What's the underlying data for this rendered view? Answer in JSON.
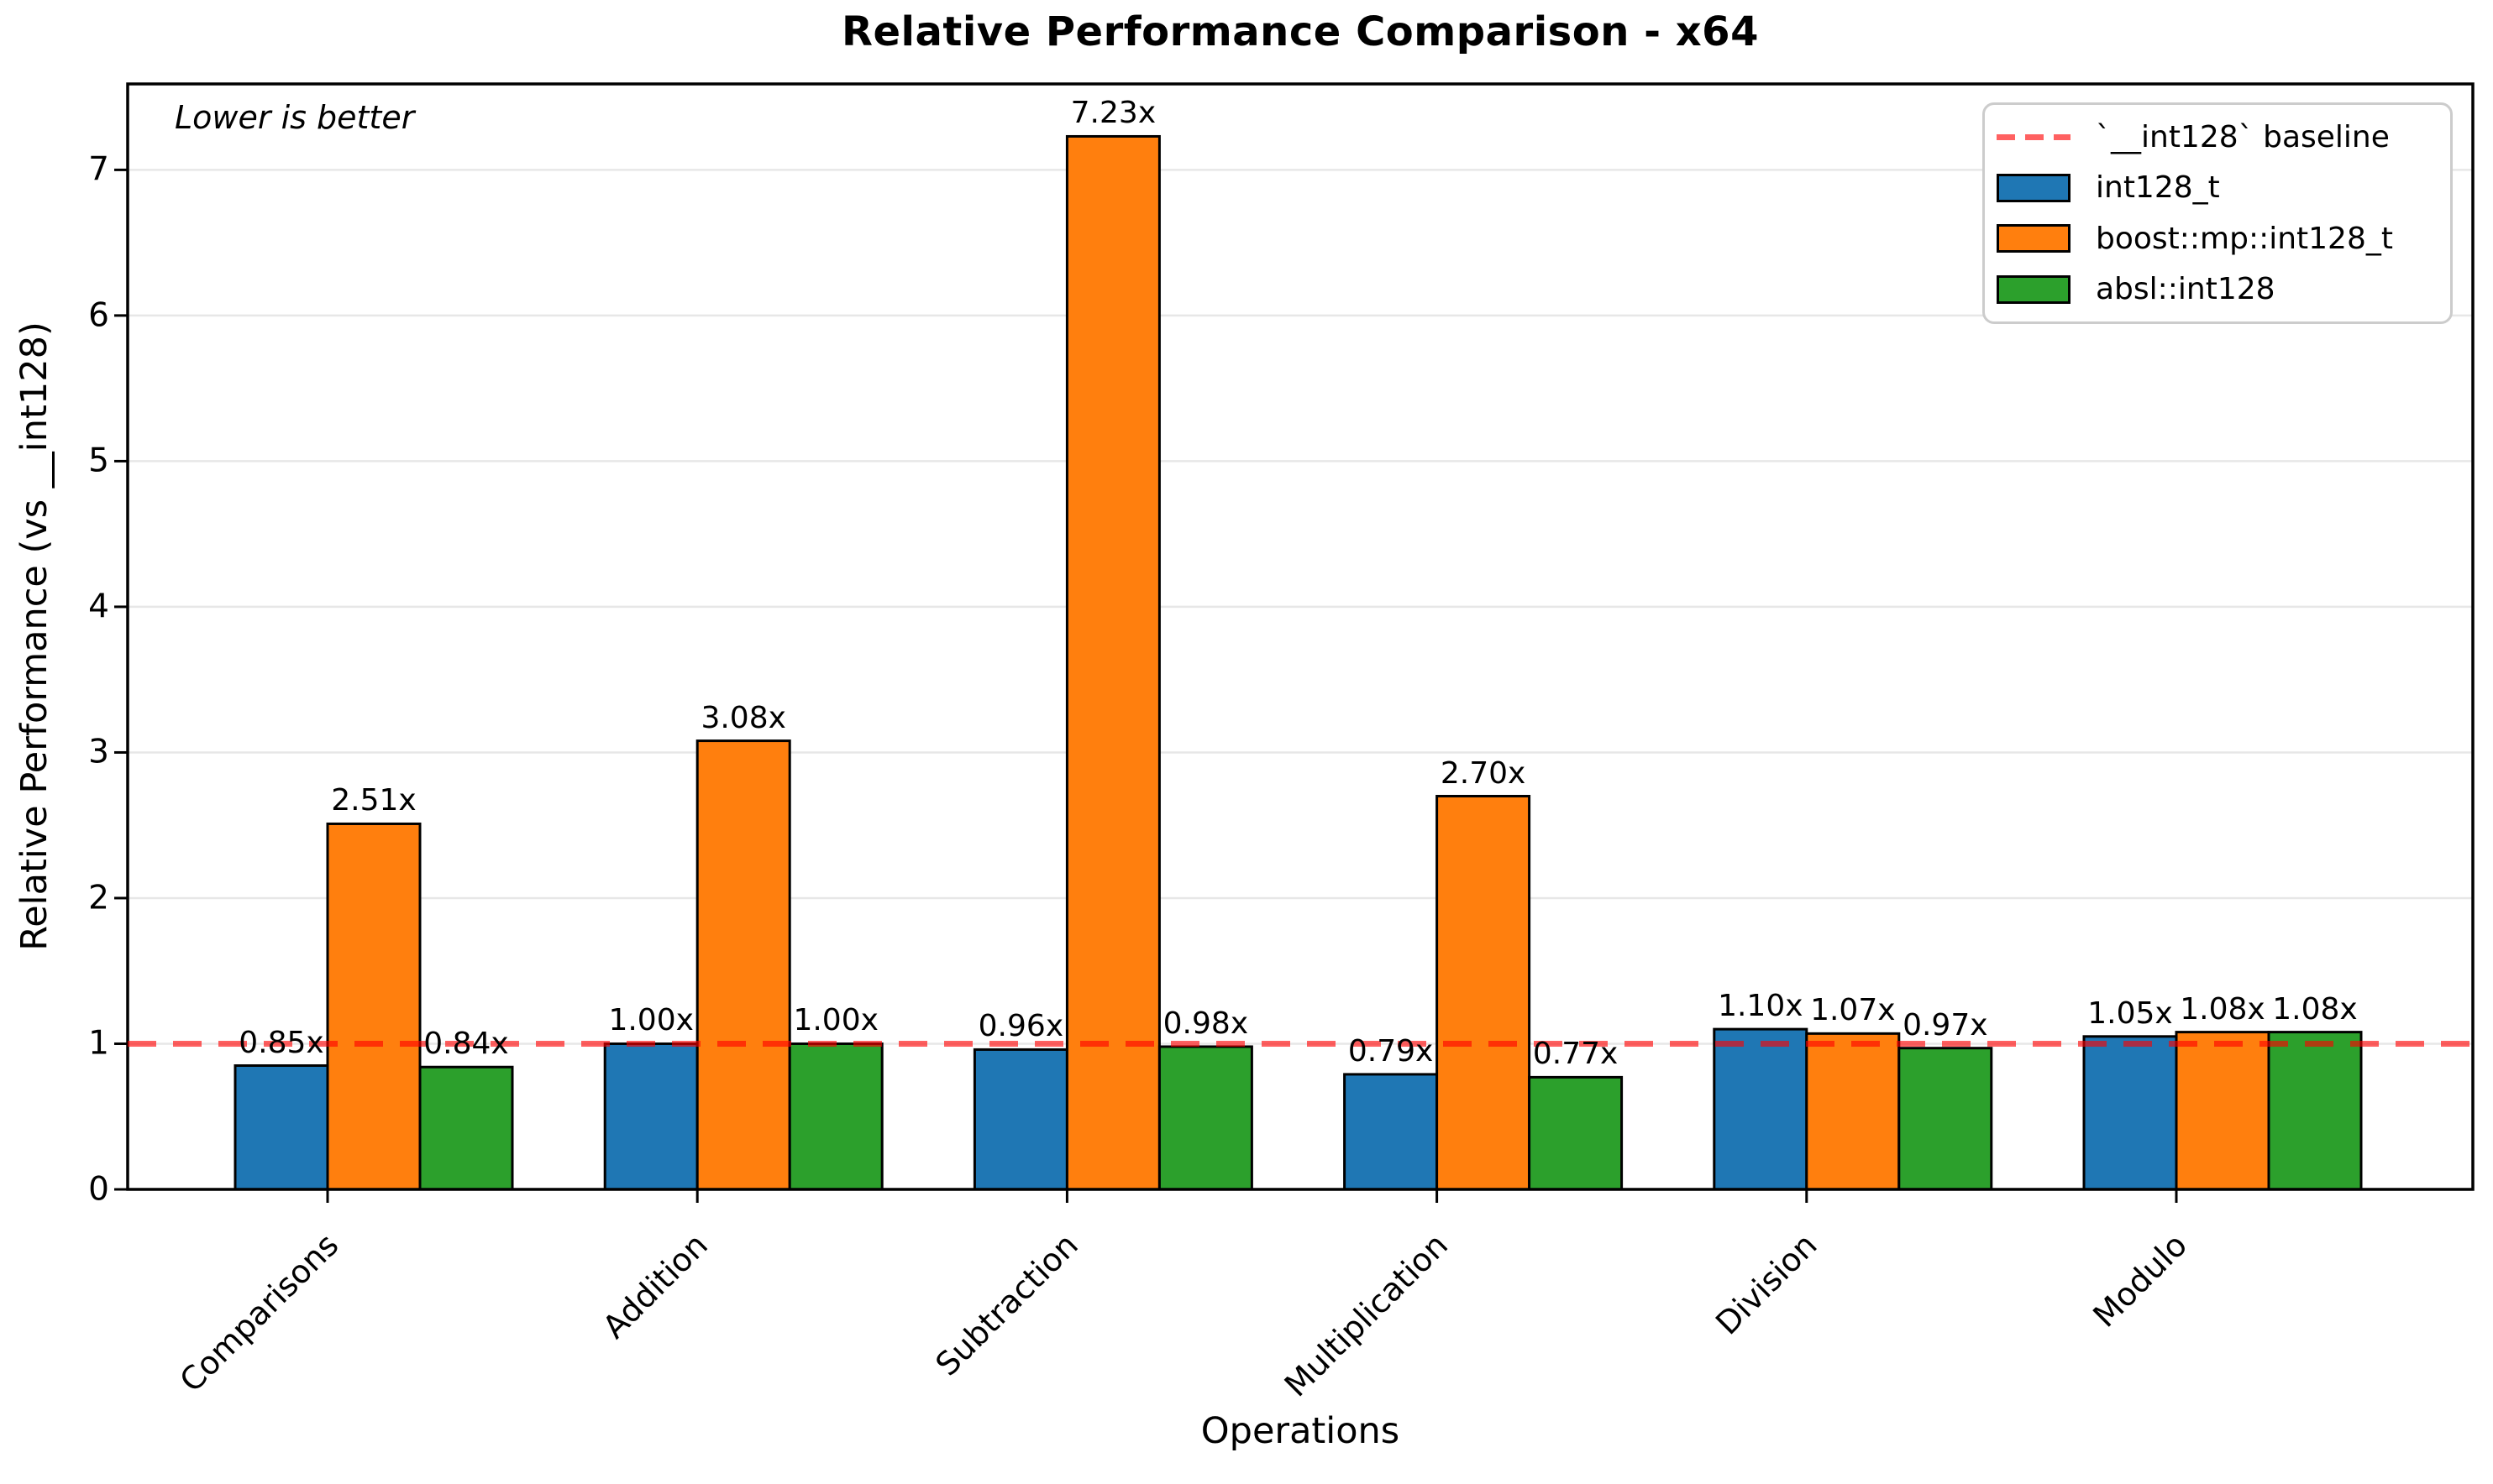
{
  "chart_data": {
    "type": "bar",
    "title": "Relative Performance Comparison - x64",
    "xlabel": "Operations",
    "ylabel": "Relative Performance (vs __int128)",
    "annotation": {
      "text": "Lower is better",
      "style": "italic",
      "position": "upper left"
    },
    "categories": [
      "Comparisons",
      "Addition",
      "Subtraction",
      "Multiplication",
      "Division",
      "Modulo"
    ],
    "series": [
      {
        "name": "int128_t",
        "color": "#1f77b4",
        "values": [
          0.85,
          1.0,
          0.96,
          0.79,
          1.1,
          1.05
        ]
      },
      {
        "name": "boost::mp::int128_t",
        "color": "#ff7f0e",
        "values": [
          2.51,
          3.08,
          7.23,
          2.7,
          1.07,
          1.08
        ]
      },
      {
        "name": "absl::int128",
        "color": "#2ca02c",
        "values": [
          0.84,
          1.0,
          0.98,
          0.77,
          0.97,
          1.08
        ]
      }
    ],
    "bar_label_suffix": "x",
    "bar_labels": [
      [
        "0.85x",
        "1.00x",
        "0.96x",
        "0.79x",
        "1.10x",
        "1.05x"
      ],
      [
        "2.51x",
        "3.08x",
        "7.23x",
        "2.70x",
        "1.07x",
        "1.08x"
      ],
      [
        "0.84x",
        "1.00x",
        "0.98x",
        "0.77x",
        "0.97x",
        "1.08x"
      ]
    ],
    "baseline": {
      "value": 1.0,
      "label": "`__int128` baseline",
      "color": "#ff0000",
      "style": "dashed"
    },
    "yticks": [
      0,
      1,
      2,
      3,
      4,
      5,
      6,
      7
    ],
    "ylim": [
      0,
      7.59
    ],
    "grid": true,
    "legend": {
      "position": "upper right",
      "entries": [
        "`__int128` baseline",
        "int128_t",
        "boost::mp::int128_t",
        "absl::int128"
      ]
    },
    "colors": {
      "bar_edge": "#000000",
      "gridline": "#e7e7e7",
      "baseline_rendered": "rgba(255,0,0,0.62)"
    }
  }
}
